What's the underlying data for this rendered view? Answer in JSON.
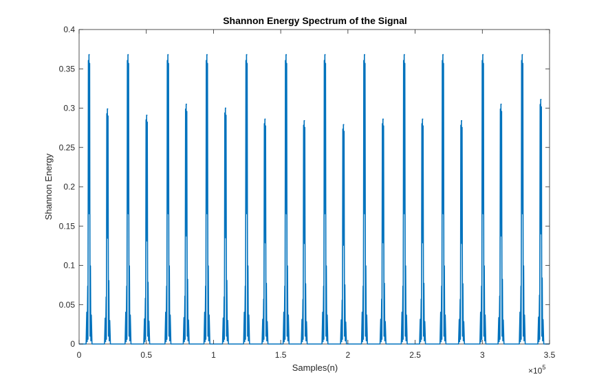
{
  "chart_data": {
    "type": "line",
    "title": "Shannon Energy Spectrum of the Signal",
    "xlabel": "Samples(n)",
    "ylabel": "Shannon Energy",
    "x_multiplier_base": "×10",
    "x_multiplier_exponent": "5",
    "xlim": [
      0,
      350000
    ],
    "ylim": [
      0,
      0.4
    ],
    "x_ticks": [
      0,
      50000,
      100000,
      150000,
      200000,
      250000,
      300000,
      350000
    ],
    "x_tick_labels": [
      "0",
      "0.5",
      "1",
      "1.5",
      "2",
      "2.5",
      "3",
      "3.5"
    ],
    "y_ticks": [
      0,
      0.05,
      0.1,
      0.15,
      0.2,
      0.25,
      0.3,
      0.35,
      0.4
    ],
    "y_tick_labels": [
      "0",
      "0.05",
      "0.1",
      "0.15",
      "0.2",
      "0.25",
      "0.3",
      "0.35",
      "0.4"
    ],
    "grid": false,
    "line_color": "#0072BD",
    "peaks": [
      {
        "x": 7500,
        "y": 0.368
      },
      {
        "x": 21200,
        "y": 0.299
      },
      {
        "x": 36500,
        "y": 0.368
      },
      {
        "x": 50400,
        "y": 0.291
      },
      {
        "x": 66200,
        "y": 0.368
      },
      {
        "x": 79800,
        "y": 0.305
      },
      {
        "x": 95200,
        "y": 0.368
      },
      {
        "x": 109000,
        "y": 0.3
      },
      {
        "x": 124700,
        "y": 0.368
      },
      {
        "x": 138400,
        "y": 0.286
      },
      {
        "x": 154100,
        "y": 0.368
      },
      {
        "x": 167600,
        "y": 0.284
      },
      {
        "x": 183000,
        "y": 0.368
      },
      {
        "x": 196800,
        "y": 0.279
      },
      {
        "x": 212400,
        "y": 0.368
      },
      {
        "x": 226200,
        "y": 0.286
      },
      {
        "x": 242000,
        "y": 0.368
      },
      {
        "x": 255600,
        "y": 0.286
      },
      {
        "x": 270800,
        "y": 0.368
      },
      {
        "x": 284600,
        "y": 0.284
      },
      {
        "x": 300500,
        "y": 0.368
      },
      {
        "x": 314000,
        "y": 0.305
      },
      {
        "x": 329800,
        "y": 0.368
      },
      {
        "x": 343600,
        "y": 0.311
      }
    ]
  }
}
